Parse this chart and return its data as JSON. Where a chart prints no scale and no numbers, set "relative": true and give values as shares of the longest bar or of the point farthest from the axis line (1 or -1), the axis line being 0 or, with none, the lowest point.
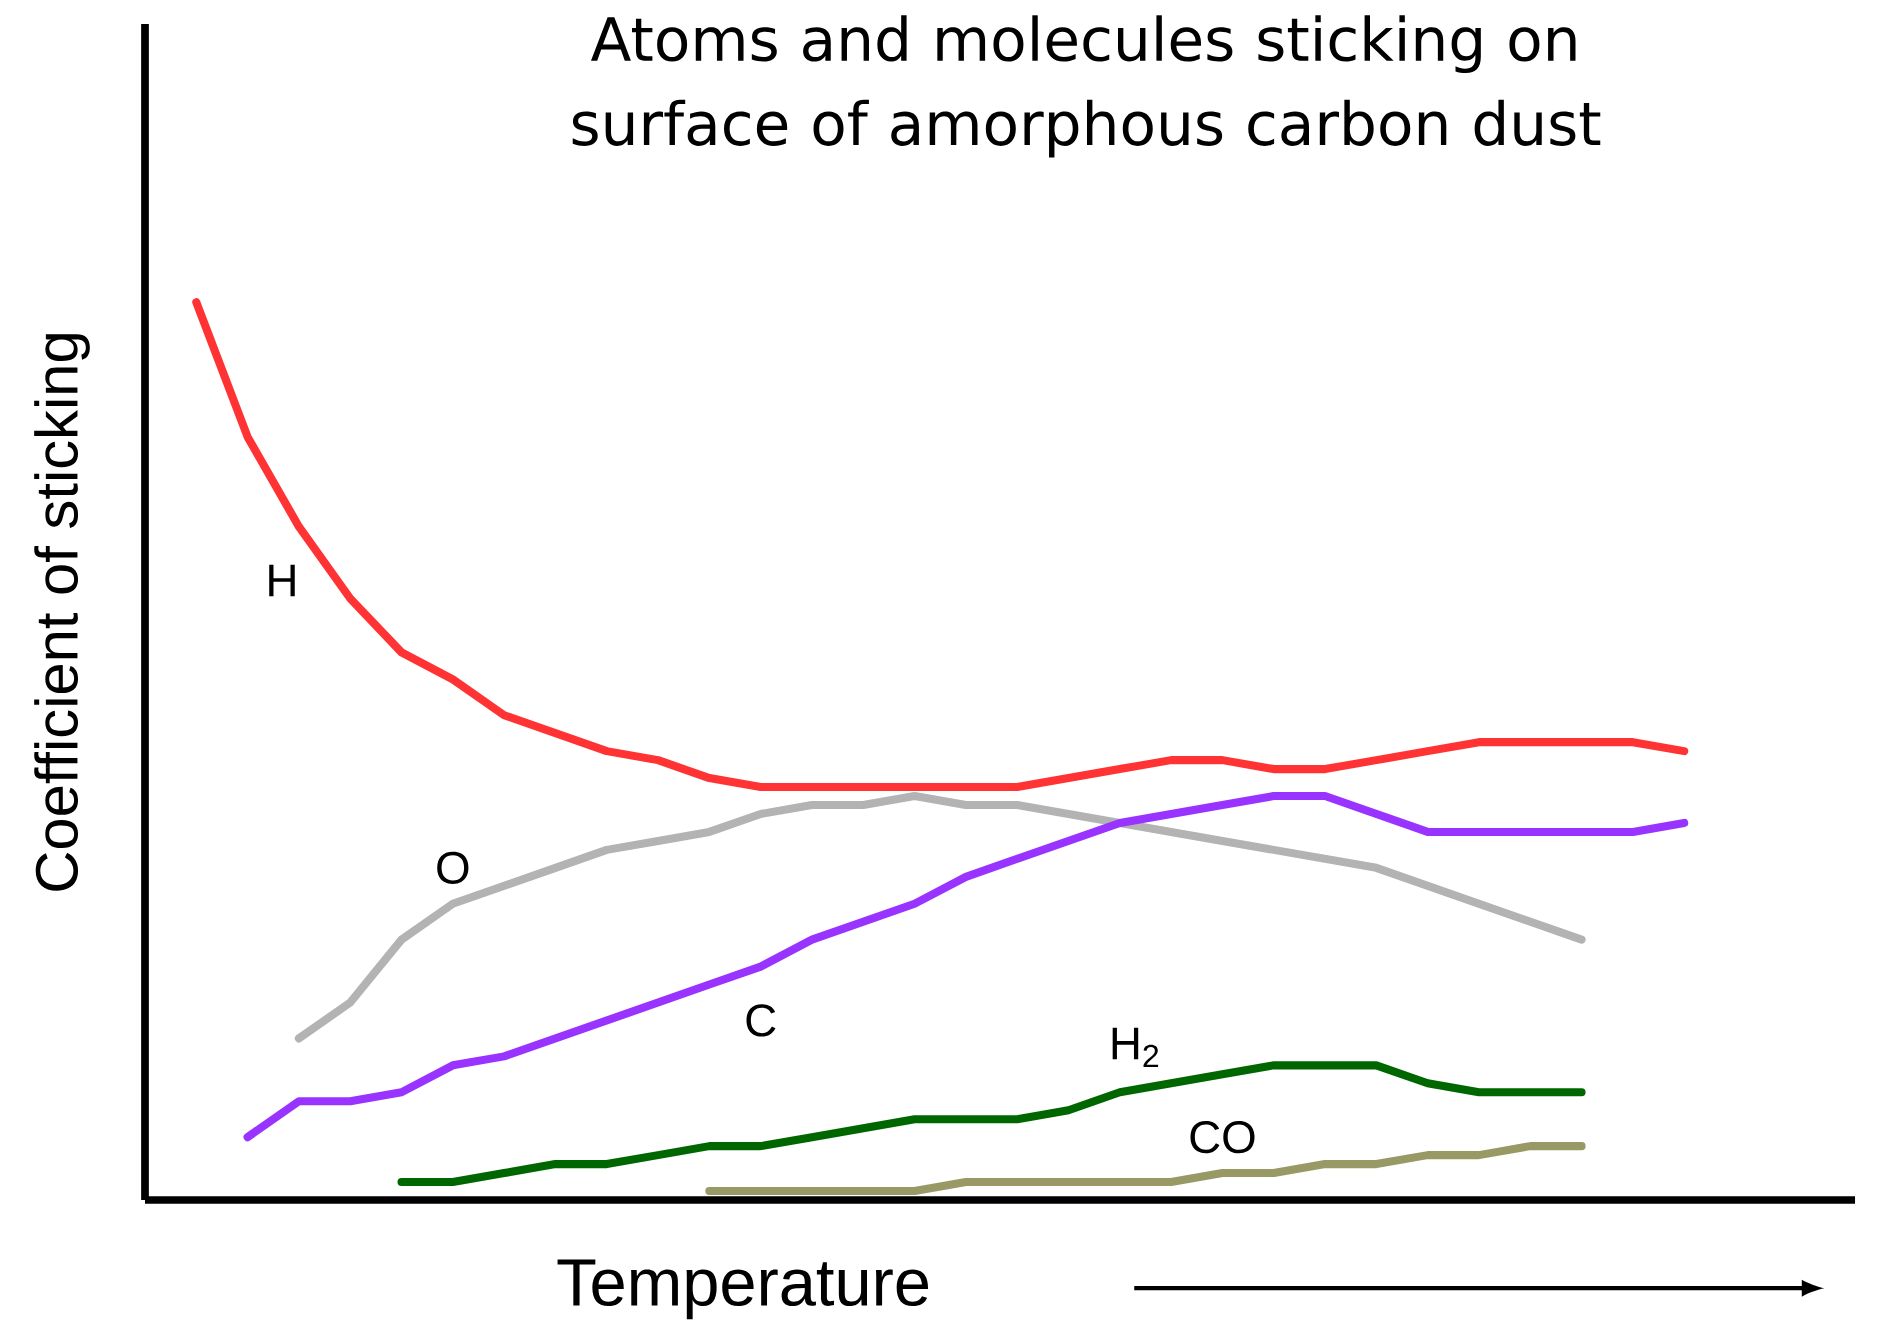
{
  "chart_data": {
    "type": "line",
    "title": "Atoms and molecules sticking on surface of amorphous carbon dust",
    "xlabel": "Temperature",
    "ylabel": "Coefficient of sticking",
    "relative": true,
    "tick_labels": false,
    "legend": false,
    "marker": "none",
    "line_style": "solid",
    "categories": [
      null,
      null,
      null,
      null,
      null,
      null,
      null,
      null,
      null,
      null,
      null,
      null,
      null,
      null,
      null,
      null,
      null,
      null,
      null,
      null,
      null,
      null,
      null,
      null,
      null,
      null,
      null,
      null,
      null,
      null
    ],
    "series": [
      {
        "name": "H",
        "color": "#ff3333",
        "values": [
          1.0,
          0.85,
          0.75,
          0.67,
          0.61,
          0.58,
          0.54,
          0.52,
          0.5,
          0.49,
          0.47,
          0.46,
          0.46,
          0.46,
          0.46,
          0.46,
          0.46,
          0.47,
          0.48,
          0.49,
          0.49,
          0.48,
          0.48,
          0.49,
          0.5,
          0.51,
          0.51,
          0.51,
          0.51,
          0.5
        ]
      },
      {
        "name": "O",
        "color": "#b3b3b3",
        "values": [
          null,
          null,
          0.18,
          0.22,
          0.29,
          0.33,
          0.35,
          0.37,
          0.39,
          0.4,
          0.41,
          0.43,
          0.44,
          0.44,
          0.45,
          0.44,
          0.44,
          0.43,
          0.42,
          0.41,
          0.4,
          0.39,
          0.38,
          0.37,
          0.35,
          0.33,
          0.31,
          0.29,
          null,
          null
        ]
      },
      {
        "name": "C",
        "color": "#9933ff",
        "values": [
          null,
          0.07,
          0.11,
          0.11,
          0.12,
          0.15,
          0.16,
          0.18,
          0.2,
          0.22,
          0.24,
          0.26,
          0.29,
          0.31,
          0.33,
          0.36,
          0.38,
          0.4,
          0.42,
          0.43,
          0.44,
          0.45,
          0.45,
          0.43,
          0.41,
          0.41,
          0.41,
          0.41,
          0.41,
          0.42
        ]
      },
      {
        "name": "H$_{2}$",
        "color": "#006600",
        "values": [
          null,
          null,
          null,
          null,
          0.02,
          0.02,
          0.03,
          0.04,
          0.04,
          0.05,
          0.06,
          0.06,
          0.07,
          0.08,
          0.09,
          0.09,
          0.09,
          0.1,
          0.12,
          0.13,
          0.14,
          0.15,
          0.15,
          0.15,
          0.13,
          0.12,
          0.12,
          0.12,
          null,
          null
        ]
      },
      {
        "name": "CO",
        "color": "#999966",
        "values": [
          null,
          null,
          null,
          null,
          null,
          null,
          null,
          null,
          null,
          null,
          0.01,
          0.01,
          0.01,
          0.01,
          0.01,
          0.02,
          0.02,
          0.02,
          0.02,
          0.02,
          0.03,
          0.03,
          0.04,
          0.04,
          0.05,
          0.05,
          0.06,
          0.06,
          null,
          null
        ]
      }
    ]
  }
}
